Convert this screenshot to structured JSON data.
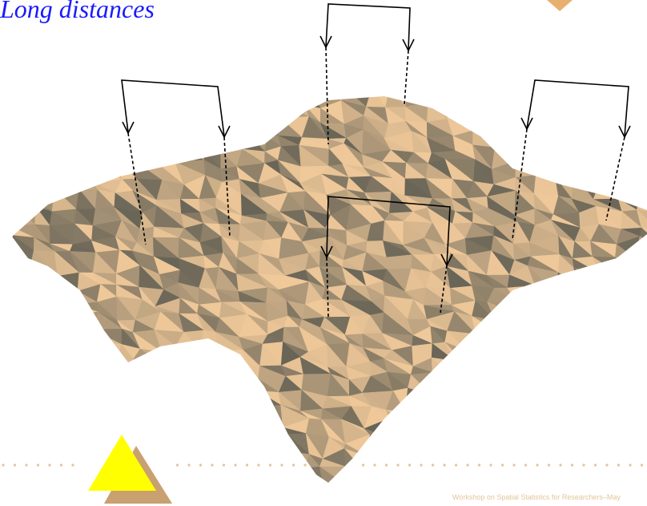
{
  "title": "Long distances",
  "footer": "Workshop on Spatial Statistics for Researchers–May"
}
